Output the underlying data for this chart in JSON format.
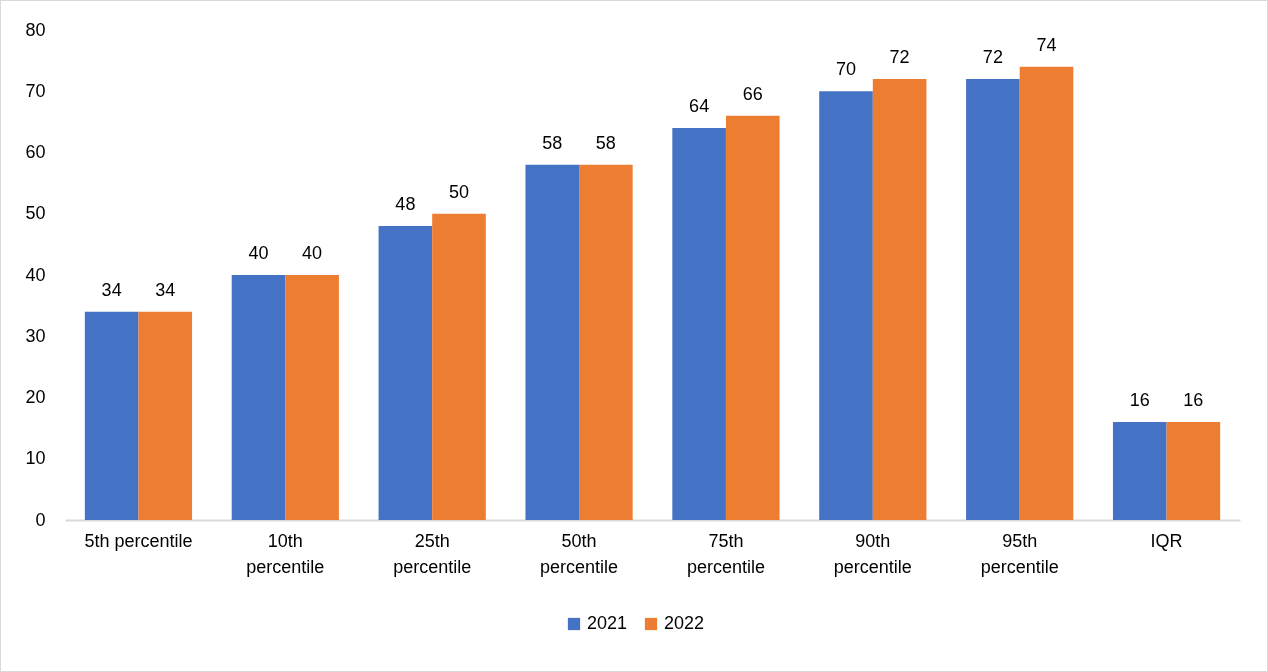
{
  "chart_data": {
    "type": "bar",
    "categories": [
      "5th percentile",
      "10th percentile",
      "25th percentile",
      "50th percentile",
      "75th percentile",
      "90th percentile",
      "95th percentile",
      "IQR"
    ],
    "series": [
      {
        "name": "2021",
        "color": "#4472c4",
        "values": [
          34,
          40,
          48,
          58,
          64,
          70,
          72,
          16
        ]
      },
      {
        "name": "2022",
        "color": "#ed7d31",
        "values": [
          34,
          40,
          50,
          58,
          66,
          72,
          74,
          16
        ]
      }
    ],
    "ylim": [
      0,
      80
    ],
    "yticks": [
      0,
      10,
      20,
      30,
      40,
      50,
      60,
      70,
      80
    ],
    "data_labels": true,
    "legend": "bottom",
    "grid": false
  }
}
